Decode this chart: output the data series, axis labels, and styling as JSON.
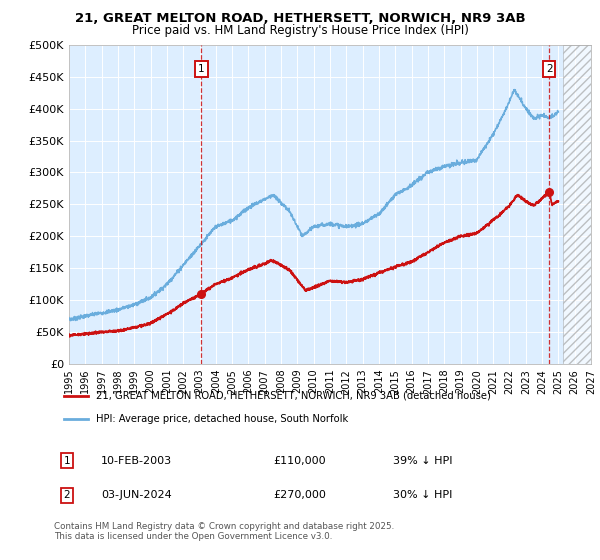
{
  "title_line1": "21, GREAT MELTON ROAD, HETHERSETT, NORWICH, NR9 3AB",
  "title_line2": "Price paid vs. HM Land Registry's House Price Index (HPI)",
  "ylabel_ticks": [
    "£0",
    "£50K",
    "£100K",
    "£150K",
    "£200K",
    "£250K",
    "£300K",
    "£350K",
    "£400K",
    "£450K",
    "£500K"
  ],
  "ylabel_values": [
    0,
    50000,
    100000,
    150000,
    200000,
    250000,
    300000,
    350000,
    400000,
    450000,
    500000
  ],
  "ylim": [
    0,
    500000
  ],
  "xlim_start": 1995.0,
  "xlim_end": 2027.0,
  "chart_bg": "#ddeeff",
  "hatch_start": 2025.3,
  "marker1_x": 2003.11,
  "marker1_y": 110000,
  "marker2_x": 2024.44,
  "marker2_y": 270000,
  "marker1_date": "10-FEB-2003",
  "marker1_price": "£110,000",
  "marker1_hpi": "39% ↓ HPI",
  "marker2_date": "03-JUN-2024",
  "marker2_price": "£270,000",
  "marker2_hpi": "30% ↓ HPI",
  "legend_label_red": "21, GREAT MELTON ROAD, HETHERSETT, NORWICH, NR9 3AB (detached house)",
  "legend_label_blue": "HPI: Average price, detached house, South Norfolk",
  "footer": "Contains HM Land Registry data © Crown copyright and database right 2025.\nThis data is licensed under the Open Government Licence v3.0.",
  "red_color": "#cc1111",
  "blue_color": "#6aaddd",
  "grid_color": "#ffffff",
  "hatch_color": "#bbbbbb"
}
